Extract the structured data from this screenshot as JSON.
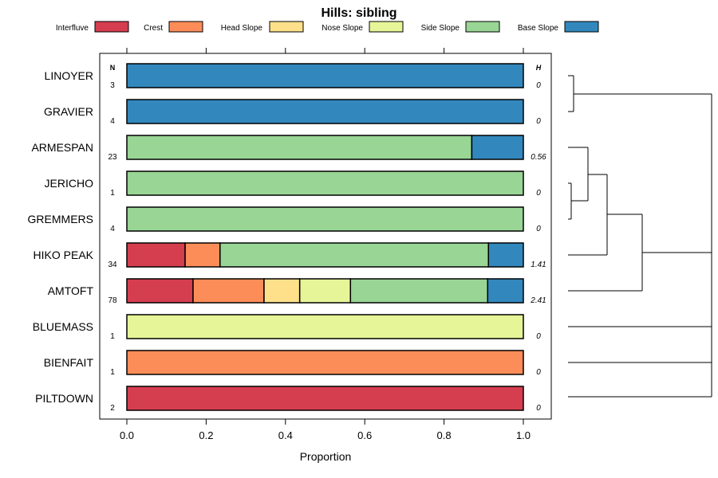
{
  "chart_data": {
    "type": "bar",
    "stacked": true,
    "orientation": "horizontal",
    "title": "Hills: sibling",
    "xlabel": "Proportion",
    "ylabel": "",
    "xlim": [
      0,
      1
    ],
    "xticks": [
      "0.0",
      "0.2",
      "0.4",
      "0.6",
      "0.8",
      "1.0"
    ],
    "n_header": "N",
    "h_header": "H",
    "legend_position": "top",
    "legend": [
      {
        "name": "Interfluve",
        "color": "#d53e4f"
      },
      {
        "name": "Crest",
        "color": "#fc8d59"
      },
      {
        "name": "Head Slope",
        "color": "#fee08b"
      },
      {
        "name": "Nose Slope",
        "color": "#e6f598"
      },
      {
        "name": "Side Slope",
        "color": "#99d594"
      },
      {
        "name": "Base Slope",
        "color": "#3288bd"
      }
    ],
    "categories": [
      "LINOYER",
      "GRAVIER",
      "ARMESPAN",
      "JERICHO",
      "GREMMERS",
      "HIKO PEAK",
      "AMTOFT",
      "BLUEMASS",
      "BIENFAIT",
      "PILTDOWN"
    ],
    "n_values": [
      "3",
      "4",
      "23",
      "1",
      "4",
      "34",
      "78",
      "1",
      "1",
      "2"
    ],
    "h_values": [
      "0",
      "0",
      "0.56",
      "0",
      "0",
      "1.41",
      "2.41",
      "0",
      "0",
      "0"
    ],
    "series": [
      {
        "name": "Interfluve",
        "values": [
          0,
          0,
          0,
          0,
          0,
          0.147,
          0.167,
          0,
          0,
          1
        ]
      },
      {
        "name": "Crest",
        "values": [
          0,
          0,
          0,
          0,
          0,
          0.088,
          0.179,
          0,
          1,
          0
        ]
      },
      {
        "name": "Head Slope",
        "values": [
          0,
          0,
          0,
          0,
          0,
          0,
          0.09,
          0,
          0,
          0
        ]
      },
      {
        "name": "Nose Slope",
        "values": [
          0,
          0,
          0,
          0,
          0,
          0,
          0.128,
          1,
          0,
          0
        ]
      },
      {
        "name": "Side Slope",
        "values": [
          0,
          0,
          0.87,
          1,
          1,
          0.677,
          0.346,
          0,
          0,
          0
        ]
      },
      {
        "name": "Base Slope",
        "values": [
          1,
          1,
          0.13,
          0,
          0,
          0.088,
          0.09,
          0,
          0,
          0
        ]
      }
    ],
    "dendrogram": true
  }
}
